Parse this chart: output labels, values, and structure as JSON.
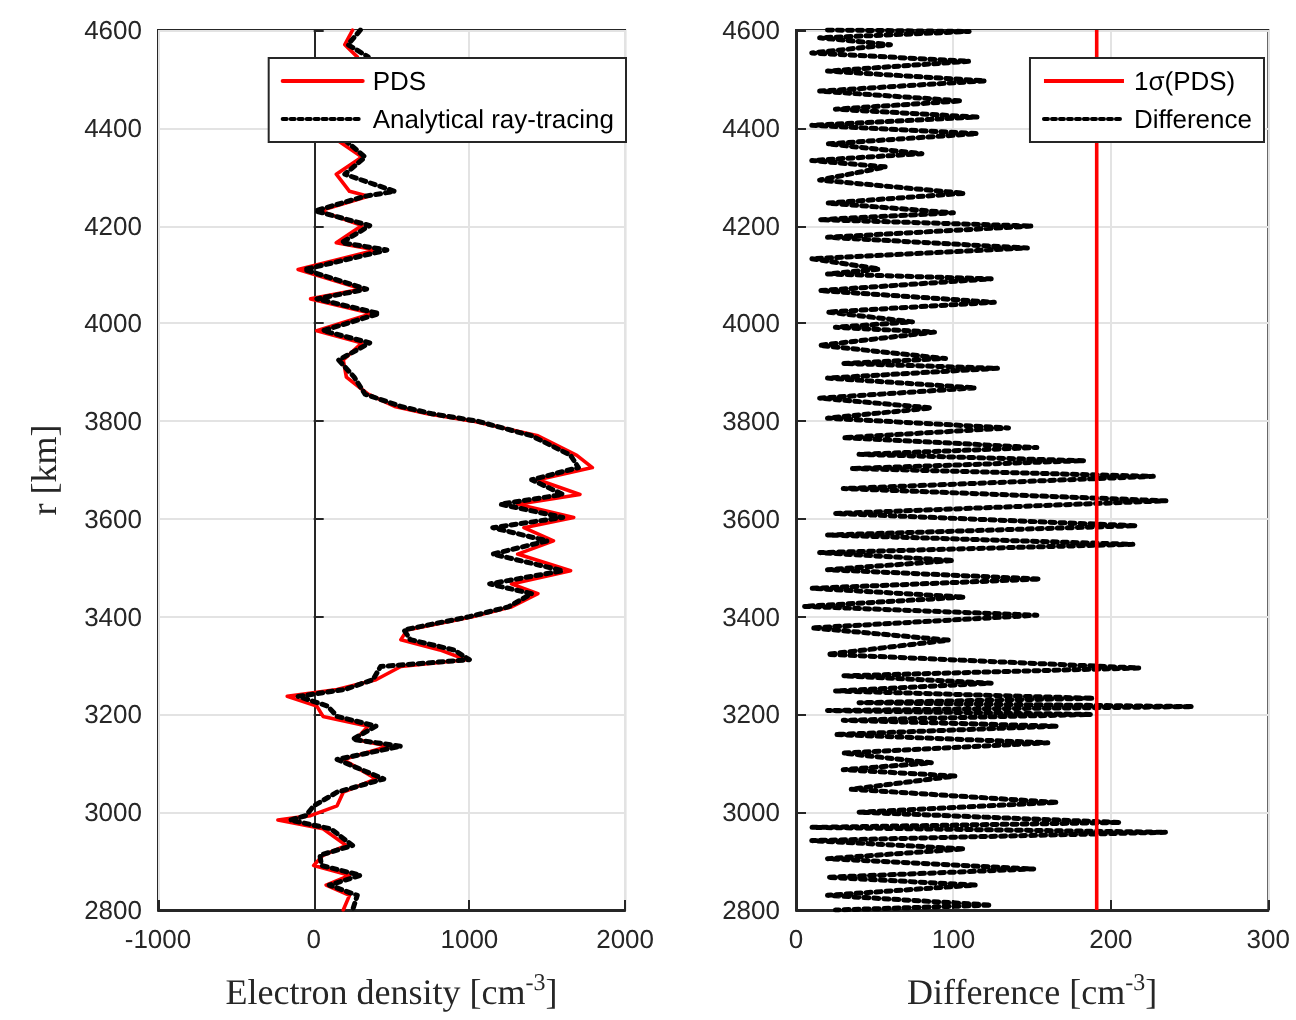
{
  "chart_data": [
    {
      "type": "line",
      "xlabel": "Electron density [cm$^{-3}$]",
      "ylabel": "r [km]",
      "xlim": [
        -1000,
        2000
      ],
      "xticks": [
        -1000,
        0,
        1000,
        2000
      ],
      "ylim": [
        2800,
        4600
      ],
      "yticks": [
        2800,
        3000,
        3200,
        3400,
        3600,
        3800,
        4000,
        4200,
        4400,
        4600
      ],
      "grid": true,
      "legend": "top right",
      "series": [
        {
          "name": "PDS",
          "color": "#ff0000",
          "line_style": "solid",
          "x": [
            250,
            200,
            280,
            250,
            150,
            310,
            145,
            230,
            350,
            40,
            310,
            145,
            400,
            -100,
            310,
            -20,
            375,
            20,
            310,
            190,
            210,
            350,
            520,
            730,
            1020,
            1440,
            1690,
            1790,
            1440,
            1710,
            1310,
            1670,
            1350,
            1540,
            1310,
            1650,
            1270,
            1440,
            1270,
            1020,
            600,
            560,
            810,
            980,
            560,
            400,
            150,
            -170,
            20,
            60,
            350,
            270,
            480,
            190,
            400,
            190,
            150,
            -20,
            -230,
            60,
            210,
            60,
            0,
            230,
            80,
            230,
            190
          ],
          "values": [
            4600,
            4570,
            4545,
            null,
            4375,
            4340,
            4305,
            4270,
            4260,
            4230,
            4200,
            4165,
            4150,
            4110,
            4070,
            4050,
            4020,
            3985,
            3960,
            3925,
            3890,
            3855,
            3830,
            3815,
            3800,
            3770,
            3730,
            3705,
            3680,
            3650,
            3630,
            3603,
            3582,
            3555,
            3528,
            3494,
            3467,
            3447,
            3420,
            3400,
            3373,
            3353,
            3332,
            3312,
            3298,
            3271,
            3251,
            3237,
            3217,
            3196,
            3176,
            3149,
            3135,
            3108,
            3068,
            3041,
            3013,
            2993,
            2984,
            2966,
            2932,
            2912,
            2891,
            2871,
            2851,
            2830,
            2800
          ]
        },
        {
          "name": "Analytical ray-tracing",
          "color": "#000000",
          "line_style": "dotted",
          "x": [
            300,
            220,
            350,
            250,
            200,
            330,
            200,
            520,
            330,
            10,
            360,
            180,
            470,
            -60,
            340,
            20,
            420,
            60,
            360,
            160,
            260,
            330,
            560,
            760,
            1050,
            1400,
            1650,
            1700,
            1400,
            1600,
            1200,
            1600,
            1150,
            1500,
            1150,
            1600,
            1130,
            1400,
            1250,
            1000,
            580,
            620,
            900,
            1000,
            430,
            380,
            200,
            -100,
            90,
            150,
            400,
            250,
            560,
            150,
            450,
            150,
            0,
            -50,
            -150,
            110,
            250,
            40,
            50,
            300,
            100,
            280,
            250
          ],
          "values": [
            4600,
            4570,
            4545,
            null,
            4375,
            4340,
            4305,
            4270,
            4260,
            4230,
            4200,
            4165,
            4150,
            4110,
            4070,
            4050,
            4020,
            3985,
            3960,
            3925,
            3890,
            3855,
            3830,
            3815,
            3800,
            3770,
            3730,
            3705,
            3680,
            3650,
            3630,
            3603,
            3582,
            3555,
            3528,
            3494,
            3467,
            3447,
            3420,
            3400,
            3373,
            3353,
            3332,
            3312,
            3298,
            3271,
            3251,
            3237,
            3217,
            3196,
            3176,
            3149,
            3135,
            3108,
            3068,
            3041,
            3013,
            2993,
            2984,
            2966,
            2932,
            2912,
            2891,
            2871,
            2851,
            2830,
            2800
          ]
        }
      ]
    },
    {
      "type": "line",
      "xlabel": "Difference [cm$^{-3}$]",
      "xlim": [
        0,
        300
      ],
      "xticks": [
        0,
        100,
        200,
        300
      ],
      "ylim": [
        2800,
        4600
      ],
      "yticks": [
        2800,
        3000,
        3200,
        3400,
        3600,
        3800,
        4000,
        4200,
        4400,
        4600
      ],
      "grid": true,
      "legend": "top right",
      "ref_lines": [
        {
          "axis": "x",
          "value": 191,
          "label": "1σ(PDS)",
          "color": "#ff0000"
        }
      ],
      "series": [
        {
          "name": "Difference",
          "color": "#000000",
          "line_style": "dotted",
          "x": [
            20,
            110,
            15,
            60,
            10,
            110,
            20,
            120,
            15,
            105,
            25,
            115,
            10,
            115,
            20,
            80,
            10,
            57,
            15,
            107,
            20,
            100,
            15,
            150,
            20,
            147,
            10,
            53,
            20,
            124,
            15,
            126,
            20,
            74,
            25,
            88,
            15,
            95,
            30,
            128,
            20,
            114,
            15,
            86,
            20,
            135,
            30,
            153,
            40,
            183,
            35,
            227,
            30,
            235,
            25,
            216,
            20,
            214,
            15,
            100,
            20,
            155,
            10,
            107,
            5,
            153,
            10,
            97,
            20,
            218,
            30,
            124,
            25,
            189,
            40,
            252,
            20,
            187,
            30,
            166,
            25,
            160,
            30,
            86,
            30,
            101,
            35,
            166,
            40,
            206,
            10,
            235,
            10,
            107,
            20,
            151,
            20,
            114,
            20,
            124,
            25
          ],
          "values": [
            4600,
            4597,
            4584,
            4570,
            4553,
            4536,
            4516,
            4496,
            4475,
            4455,
            4438,
            4422,
            4405,
            4388,
            4367,
            4347,
            4333,
            4320,
            4293,
            4266,
            4246,
            4226,
            4212,
            4199,
            4176,
            4154,
            4132,
            4111,
            4101,
            4091,
            4067,
            4043,
            4023,
            4003,
            3992,
            3982,
            3955,
            3928,
            3918,
            3908,
            3888,
            3868,
            3847,
            3827,
            3806,
            3786,
            3766,
            3746,
            3732,
            3719,
            3703,
            3687,
            3662,
            3637,
            3611,
            3586,
            3567,
            3548,
            3531,
            3515,
            3496,
            3477,
            3458,
            3440,
            3421,
            3403,
            3377,
            3352,
            3323,
            3295,
            3279,
            3264,
            3248,
            3233,
            3224,
            3216,
            3208,
            3200,
            3188,
            3176,
            3159,
            3142,
            3121,
            3101,
            3087,
            3074,
            3047,
            3020,
            3000,
            2979,
            2969,
            2959,
            2942,
            2925,
            2905,
            2884,
            2867,
            2851,
            2830,
            2810,
            2800
          ]
        }
      ]
    }
  ]
}
